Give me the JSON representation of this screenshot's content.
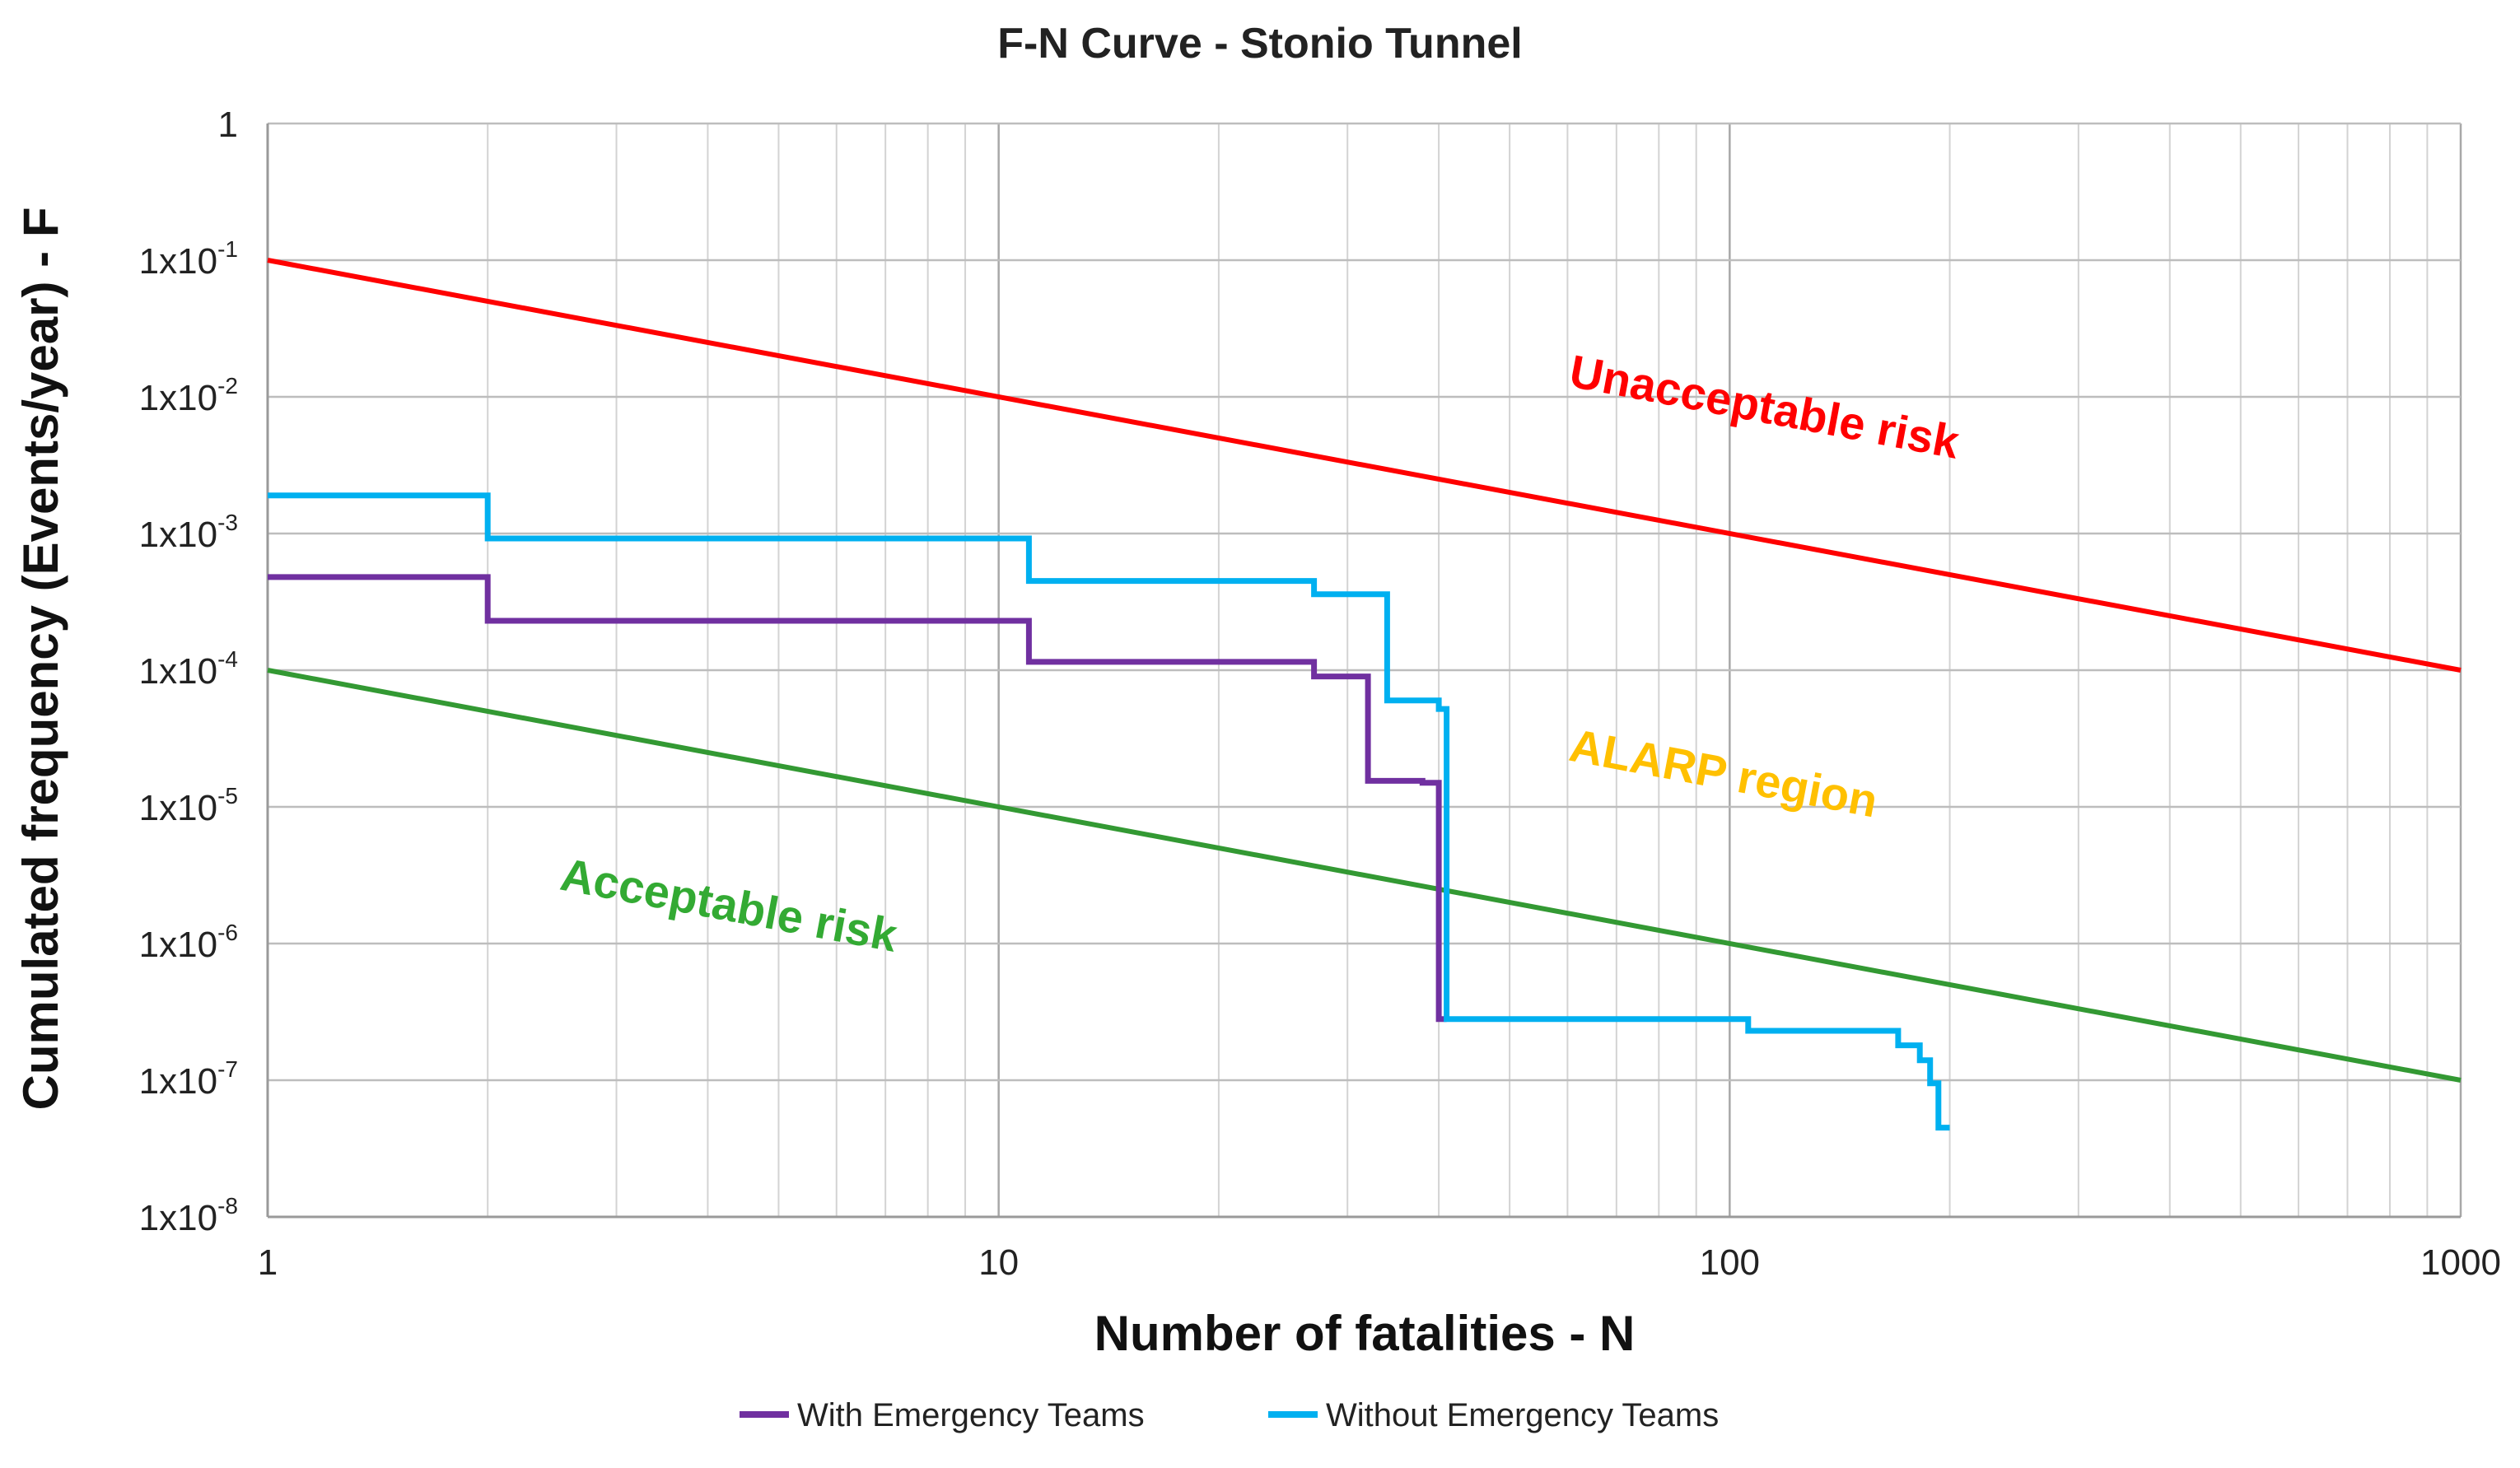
{
  "chart_data": {
    "type": "line",
    "title": "F-N Curve - Stonio Tunnel",
    "xlabel": "Number of fatalities - N",
    "ylabel": "Cumulated frequency (Events/year) - F",
    "xscale": "log",
    "yscale": "log",
    "xlim": [
      1,
      1000
    ],
    "ylim": [
      1e-08,
      1
    ],
    "grid": true,
    "legend_position": "bottom",
    "x_ticks": [
      {
        "value": 1,
        "label": "1"
      },
      {
        "value": 10,
        "label": "10"
      },
      {
        "value": 100,
        "label": "100"
      },
      {
        "value": 1000,
        "label": "1000"
      }
    ],
    "y_ticks": [
      {
        "value": 1,
        "base": "1",
        "exp": ""
      },
      {
        "value": 0.1,
        "base": "1x10",
        "exp": "-1"
      },
      {
        "value": 0.01,
        "base": "1x10",
        "exp": "-2"
      },
      {
        "value": 0.001,
        "base": "1x10",
        "exp": "-3"
      },
      {
        "value": 0.0001,
        "base": "1x10",
        "exp": "-4"
      },
      {
        "value": 1e-05,
        "base": "1x10",
        "exp": "-5"
      },
      {
        "value": 1e-06,
        "base": "1x10",
        "exp": "-6"
      },
      {
        "value": 1e-07,
        "base": "1x10",
        "exp": "-7"
      },
      {
        "value": 1e-08,
        "base": "1x10",
        "exp": "-8"
      }
    ],
    "criteria_lines": [
      {
        "label": "Unacceptable risk",
        "color": "#ff0000",
        "x": [
          1,
          1000
        ],
        "y": [
          0.1,
          0.0001
        ]
      },
      {
        "label": "Acceptable risk",
        "color": "#339933",
        "x": [
          1,
          1000
        ],
        "y": [
          0.0001,
          1e-07
        ]
      }
    ],
    "region_labels": [
      {
        "text": "Unacceptable risk",
        "color": "#ff0000",
        "x": 60,
        "y": 0.012
      },
      {
        "text": "ALARP region",
        "color": "#ffc000",
        "x": 60,
        "y": 2.2e-05
      },
      {
        "text": "Acceptable risk",
        "color": "#33aa33",
        "x": 2.5,
        "y": 2.5e-06
      }
    ],
    "series": [
      {
        "name": "With Emergency Teams",
        "color": "#7030a0",
        "points": [
          [
            1,
            0.00048
          ],
          [
            2,
            0.00048
          ],
          [
            2,
            0.00023
          ],
          [
            11,
            0.00023
          ],
          [
            11,
            0.000115
          ],
          [
            27,
            0.000115
          ],
          [
            27,
            9e-05
          ],
          [
            32,
            9e-05
          ],
          [
            32,
            1.55e-05
          ],
          [
            38,
            1.55e-05
          ],
          [
            38,
            1.5e-05
          ],
          [
            40,
            1.5e-05
          ],
          [
            40,
            2.8e-07
          ],
          [
            41,
            2.8e-07
          ]
        ]
      },
      {
        "name": "Without Emergency Teams",
        "color": "#00b0f0",
        "points": [
          [
            1,
            0.0019
          ],
          [
            2,
            0.0019
          ],
          [
            2,
            0.00092
          ],
          [
            11,
            0.00092
          ],
          [
            11,
            0.00045
          ],
          [
            27,
            0.00045
          ],
          [
            27,
            0.00036
          ],
          [
            34,
            0.00036
          ],
          [
            34,
            6e-05
          ],
          [
            40,
            6e-05
          ],
          [
            40,
            5.2e-05
          ],
          [
            41,
            5.2e-05
          ],
          [
            41,
            2.8e-07
          ],
          [
            106,
            2.8e-07
          ],
          [
            106,
            2.3e-07
          ],
          [
            170,
            2.3e-07
          ],
          [
            170,
            1.8e-07
          ],
          [
            182,
            1.8e-07
          ],
          [
            182,
            1.4e-07
          ],
          [
            188,
            1.4e-07
          ],
          [
            188,
            9.5e-08
          ],
          [
            193,
            9.5e-08
          ],
          [
            193,
            4.5e-08
          ],
          [
            200,
            4.5e-08
          ]
        ]
      }
    ]
  }
}
